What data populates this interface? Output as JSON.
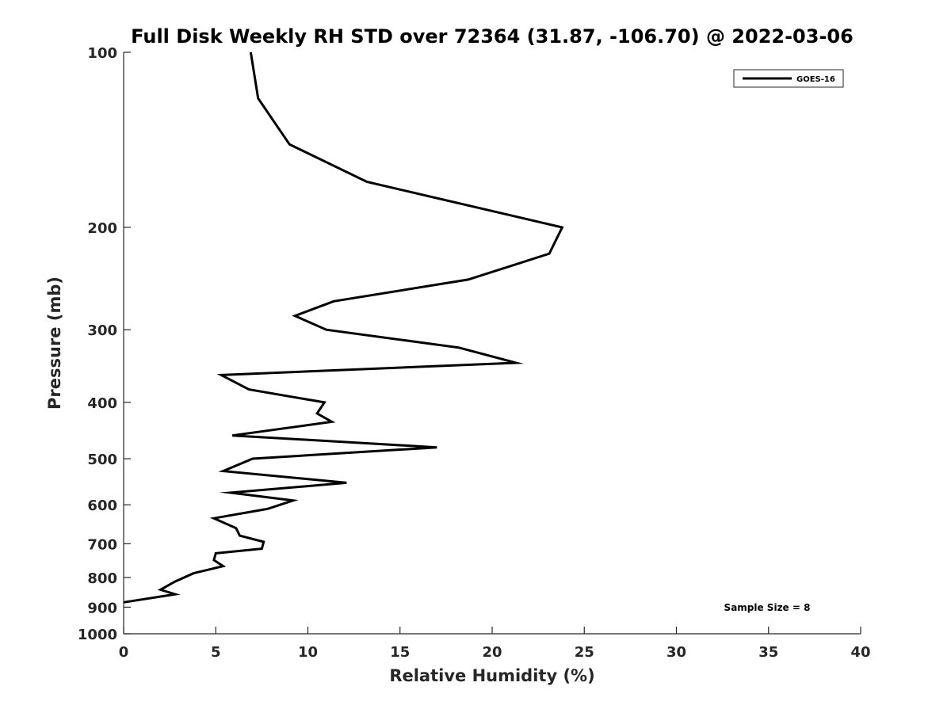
{
  "chart_data": {
    "type": "line",
    "title": "Full Disk Weekly RH STD over 72364 (31.87, -106.70) @ 2022-03-06",
    "xlabel": "Relative Humidity (%)",
    "ylabel": "Pressure (mb)",
    "xlim": [
      0,
      40
    ],
    "ylim": [
      100,
      1000
    ],
    "y_scale": "log",
    "y_reversed": true,
    "x_ticks": [
      0,
      5,
      10,
      15,
      20,
      25,
      30,
      35,
      40
    ],
    "x_tick_labels": [
      "0",
      "5",
      "10",
      "15",
      "20",
      "25",
      "30",
      "35",
      "40"
    ],
    "y_ticks": [
      100,
      200,
      300,
      400,
      500,
      600,
      700,
      800,
      900,
      1000
    ],
    "y_tick_labels": [
      "100",
      "200",
      "300",
      "400",
      "500",
      "600",
      "700",
      "800",
      "900",
      "1000"
    ],
    "grid": false,
    "legend_position": "top-right",
    "series": [
      {
        "name": "GOES-16",
        "color": "#000000",
        "points": [
          {
            "x": 6.9,
            "p": 100
          },
          {
            "x": 7.3,
            "p": 120
          },
          {
            "x": 9.0,
            "p": 144
          },
          {
            "x": 13.2,
            "p": 167
          },
          {
            "x": 23.8,
            "p": 200
          },
          {
            "x": 23.1,
            "p": 222
          },
          {
            "x": 18.7,
            "p": 246
          },
          {
            "x": 11.4,
            "p": 268
          },
          {
            "x": 9.3,
            "p": 284
          },
          {
            "x": 11.0,
            "p": 300
          },
          {
            "x": 18.2,
            "p": 322
          },
          {
            "x": 21.3,
            "p": 342
          },
          {
            "x": 5.3,
            "p": 359
          },
          {
            "x": 6.8,
            "p": 380
          },
          {
            "x": 10.9,
            "p": 400
          },
          {
            "x": 10.5,
            "p": 418
          },
          {
            "x": 11.3,
            "p": 432
          },
          {
            "x": 5.9,
            "p": 456
          },
          {
            "x": 17.0,
            "p": 478
          },
          {
            "x": 7.0,
            "p": 500
          },
          {
            "x": 5.4,
            "p": 525
          },
          {
            "x": 12.1,
            "p": 550
          },
          {
            "x": 5.8,
            "p": 572
          },
          {
            "x": 9.2,
            "p": 590
          },
          {
            "x": 7.8,
            "p": 610
          },
          {
            "x": 4.9,
            "p": 633
          },
          {
            "x": 6.1,
            "p": 658
          },
          {
            "x": 6.3,
            "p": 678
          },
          {
            "x": 7.6,
            "p": 695
          },
          {
            "x": 7.5,
            "p": 714
          },
          {
            "x": 5.0,
            "p": 727
          },
          {
            "x": 4.9,
            "p": 747
          },
          {
            "x": 5.4,
            "p": 765
          },
          {
            "x": 3.8,
            "p": 787
          },
          {
            "x": 2.8,
            "p": 813
          },
          {
            "x": 2.0,
            "p": 840
          },
          {
            "x": 2.8,
            "p": 855
          },
          {
            "x": 0.0,
            "p": 883
          }
        ]
      }
    ],
    "annotations": [
      {
        "text": "Sample Size = 8",
        "position": "bottom-right"
      }
    ]
  },
  "colors": {
    "line": "#000000",
    "axis": "#262626",
    "background": "#ffffff"
  }
}
